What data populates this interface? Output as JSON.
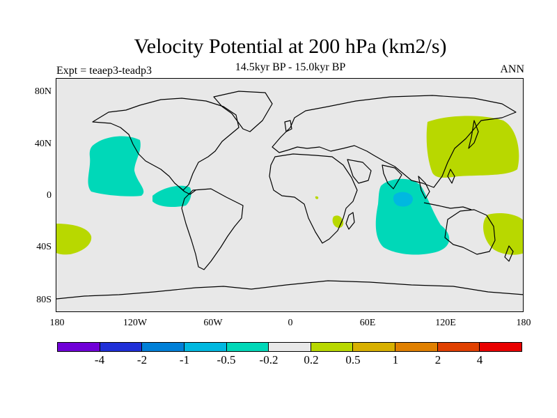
{
  "title": "Velocity Potential at 200 hPa (km2/s)",
  "subtitle": "14.5kyr BP - 15.0kyr BP",
  "left_label": "Expt = teaep3-teadp3",
  "right_label": "ANN",
  "axes": {
    "y_ticks": [
      "80N",
      "40N",
      "0",
      "40S",
      "80S"
    ],
    "x_ticks": [
      "180",
      "120W",
      "60W",
      "0",
      "60E",
      "120E",
      "180"
    ]
  },
  "colors": {
    "background": "#e8e8e8",
    "land_outline": "#000000",
    "neg_02_05": "#00d8b8",
    "neg_05_1": "#00b8e0",
    "pos_02_05": "#b8d800"
  },
  "colorbar": {
    "colors": [
      "#7000d8",
      "#2030d8",
      "#0080d8",
      "#00b8e0",
      "#00d8b8",
      "#e8e8e8",
      "#b8d800",
      "#d8b000",
      "#e08000",
      "#e04000",
      "#e80000"
    ],
    "labels": [
      "-4",
      "-2",
      "-1",
      "-0.5",
      "-0.2",
      "0.2",
      "0.5",
      "1",
      "2",
      "4"
    ]
  }
}
